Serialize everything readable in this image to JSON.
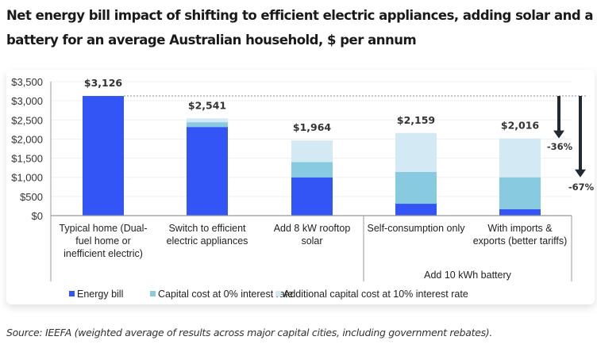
{
  "title": "Net energy bill impact of shifting to efficient electric appliances, adding solar and a battery for an average Australian household, $ per annum",
  "source": "Source: IEEFA (weighted average of results across major capital cities, including government rebates).",
  "chart_data": {
    "type": "bar",
    "stacked": true,
    "title": "Net energy bill impact of shifting to efficient electric appliances, adding solar and a battery for an average Australian household, $ per annum",
    "xlabel": "",
    "ylabel": "",
    "ylim": [
      0,
      3500
    ],
    "yticks": [
      0,
      500,
      1000,
      1500,
      2000,
      2500,
      3000,
      3500
    ],
    "ytick_labels": [
      "$0",
      "$500",
      "$1,000",
      "$1,500",
      "$2,000",
      "$2,500",
      "$3,000",
      "$3,500"
    ],
    "grid": true,
    "categories": [
      [
        "Typical home (Dual-",
        "fuel home or",
        "inefficient electric)"
      ],
      [
        "Switch to efficient",
        "electric appliances"
      ],
      [
        "Add 8 kW rooftop",
        "solar"
      ],
      [
        "Self-consumption only"
      ],
      [
        "With imports &",
        "exports (better tariffs)"
      ]
    ],
    "category_group": {
      "label": "Add 10 kWh battery",
      "members": [
        3,
        4
      ]
    },
    "series": [
      {
        "name": "Energy bill",
        "color": "#3355f5",
        "values": [
          3126,
          2316,
          1000,
          310,
          170
        ]
      },
      {
        "name": "Capital cost at 0% interest rate",
        "color": "#88cbe0",
        "values": [
          0,
          125,
          400,
          834,
          831
        ]
      },
      {
        "name": "Additional capital cost at 10% interest rate",
        "color": "#d3e9f3",
        "values": [
          0,
          100,
          564,
          1015,
          1015
        ]
      }
    ],
    "totals": [
      3126,
      2541,
      1964,
      2159,
      2016
    ],
    "total_labels": [
      "$3,126",
      "$2,541",
      "$1,964",
      "$2,159",
      "$2,016"
    ],
    "reference_line": {
      "value": 3126,
      "style": "dotted"
    },
    "annotations": [
      {
        "label": "-36%",
        "from": 3126,
        "to": 2016,
        "type": "arrow"
      },
      {
        "label": "-67%",
        "from": 3126,
        "to": 1000,
        "type": "arrow"
      }
    ],
    "legend_position": "bottom"
  }
}
